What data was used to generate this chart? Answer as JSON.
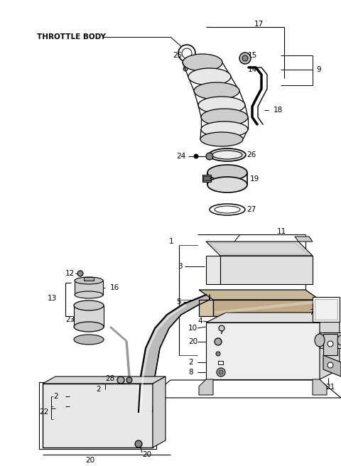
{
  "bg_color": "#ffffff",
  "line_color": "#000000",
  "fig_width": 4.8,
  "fig_height": 6.56,
  "dpi": 100
}
